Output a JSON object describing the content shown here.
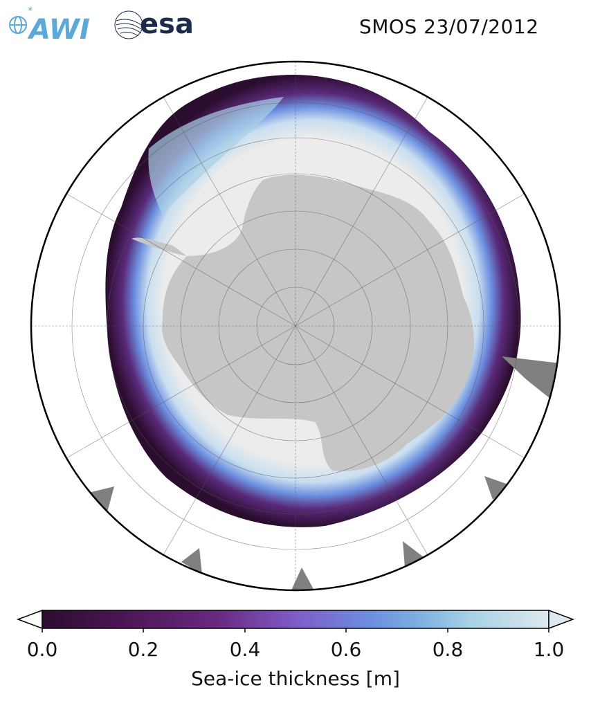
{
  "header": {
    "title": "SMOS 23/07/2012",
    "logo_left": "AWI",
    "logo_right": "esa"
  },
  "colorbar": {
    "label": "Sea-ice thickness [m]",
    "ticks": [
      "0.0",
      "0.2",
      "0.4",
      "0.6",
      "0.8",
      "1.0"
    ],
    "min": 0.0,
    "max": 1.0,
    "extend": "both",
    "colors": [
      "#2b0d2f",
      "#4a1552",
      "#6a2a82",
      "#7e5cc7",
      "#6c8fe0",
      "#7fb2e0",
      "#a9d2e6",
      "#dde9ee"
    ]
  },
  "map": {
    "projection": "south polar stereographic",
    "colors": {
      "ocean": "#ffffff",
      "land": "#c6c6c6",
      "ice_shelf_gray": "#808080",
      "thick_ice": "#ececec"
    }
  }
}
